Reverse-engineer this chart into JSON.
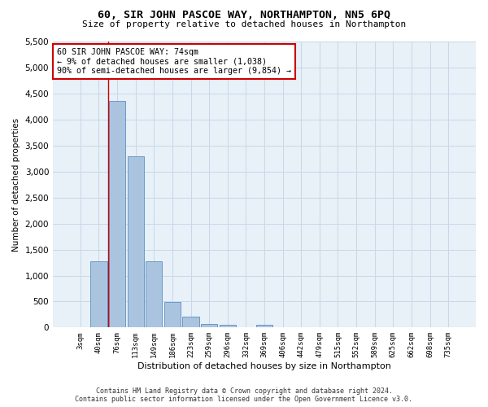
{
  "title": "60, SIR JOHN PASCOE WAY, NORTHAMPTON, NN5 6PQ",
  "subtitle": "Size of property relative to detached houses in Northampton",
  "xlabel": "Distribution of detached houses by size in Northampton",
  "ylabel": "Number of detached properties",
  "footer_line1": "Contains HM Land Registry data © Crown copyright and database right 2024.",
  "footer_line2": "Contains public sector information licensed under the Open Government Licence v3.0.",
  "bar_labels": [
    "3sqm",
    "40sqm",
    "76sqm",
    "113sqm",
    "149sqm",
    "186sqm",
    "223sqm",
    "259sqm",
    "296sqm",
    "332sqm",
    "369sqm",
    "406sqm",
    "442sqm",
    "479sqm",
    "515sqm",
    "552sqm",
    "589sqm",
    "625sqm",
    "662sqm",
    "698sqm",
    "735sqm"
  ],
  "bar_values": [
    0,
    1270,
    4370,
    3300,
    1270,
    490,
    215,
    75,
    55,
    0,
    60,
    0,
    0,
    0,
    0,
    0,
    0,
    0,
    0,
    0,
    0
  ],
  "bar_color": "#aac4e0",
  "bar_edge_color": "#5a8fbf",
  "highlight_color": "#cc0000",
  "annotation_text": "60 SIR JOHN PASCOE WAY: 74sqm\n← 9% of detached houses are smaller (1,038)\n90% of semi-detached houses are larger (9,854) →",
  "annotation_box_color": "#ffffff",
  "annotation_border_color": "#cc0000",
  "grid_color": "#c8d8e8",
  "bg_color": "#e8f0f8",
  "ylim": [
    0,
    5500
  ],
  "yticks": [
    0,
    500,
    1000,
    1500,
    2000,
    2500,
    3000,
    3500,
    4000,
    4500,
    5000,
    5500
  ]
}
